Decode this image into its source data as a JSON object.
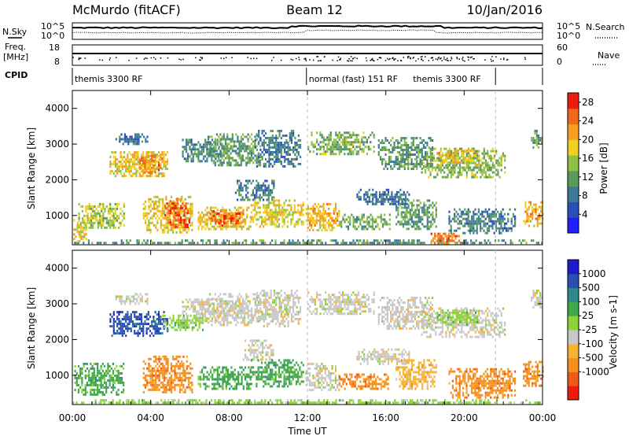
{
  "header": {
    "station": "McMurdo (fitACF)",
    "beam": "Beam 12",
    "date": "10/Jan/2016"
  },
  "top_panels": {
    "nsky_label": "N.Sky",
    "nsky_ticks": [
      "10^5",
      "10^0"
    ],
    "freq_label_1": "Freq.",
    "freq_label_2": "[MHz]",
    "freq_ticks": [
      "18",
      "8"
    ],
    "nsearch_label": "N.Search",
    "nsearch_ticks": [
      "10^5",
      "10^0"
    ],
    "nave_label": "Nave",
    "nave_ticks": [
      "60",
      "0"
    ],
    "cpid_label": "CPID",
    "cpid_segments": [
      {
        "label": "themis 3300 RF",
        "start_hour": 0,
        "end_hour": 11.95
      },
      {
        "label": "normal (fast) 151 RF",
        "start_hour": 11.95,
        "end_hour": 21.6
      },
      {
        "label": "themis 3300 RF",
        "start_hour": 21.6,
        "end_hour": 24
      }
    ]
  },
  "x_axis": {
    "title": "Time UT",
    "ticks": [
      "00:00",
      "04:00",
      "08:00",
      "12:00",
      "16:00",
      "20:00",
      "00:00"
    ]
  },
  "colors": {
    "power": [
      "#1f1fff",
      "#2b4fb8",
      "#3d7a9a",
      "#5a9a5a",
      "#8fc047",
      "#f0d020",
      "#f7a020",
      "#f06818",
      "#ee1c10"
    ],
    "velocity": [
      "#ee1c10",
      "#f05a18",
      "#f5901e",
      "#f7b432",
      "#c8c8c8",
      "#8ed23a",
      "#3fa84a",
      "#2f8a8a",
      "#2a4fb0",
      "#1c1ccc"
    ]
  },
  "chart_data": [
    {
      "type": "heatmap",
      "title": "Power",
      "ylabel": "Slant Range [km]",
      "xlabel": "Time UT",
      "xlim": [
        0,
        24
      ],
      "ylim": [
        180,
        4500
      ],
      "yticks": [
        1000,
        2000,
        3000,
        4000
      ],
      "colorbar": {
        "label": "Power [dB]",
        "ticks": [
          4,
          8,
          12,
          16,
          20,
          24,
          28
        ],
        "range": [
          0,
          30
        ]
      },
      "regions": [
        {
          "t0": 0.0,
          "t1": 24.0,
          "r0": 200,
          "r1": 330,
          "v": 11
        },
        {
          "t0": 0.05,
          "t1": 0.7,
          "r0": 300,
          "r1": 900,
          "v": 18
        },
        {
          "t0": 0.3,
          "t1": 2.6,
          "r0": 650,
          "r1": 1350,
          "v": 16
        },
        {
          "t0": 1.9,
          "t1": 4.9,
          "r0": 2100,
          "r1": 2800,
          "v": 19
        },
        {
          "t0": 2.2,
          "t1": 3.8,
          "r0": 3000,
          "r1": 3300,
          "v": 8
        },
        {
          "t0": 3.6,
          "t1": 6.1,
          "r0": 500,
          "r1": 1550,
          "v": 19
        },
        {
          "t0": 4.7,
          "t1": 6.0,
          "r0": 700,
          "r1": 1500,
          "v": 26
        },
        {
          "t0": 3.4,
          "t1": 4.6,
          "r0": 2200,
          "r1": 2700,
          "v": 23
        },
        {
          "t0": 5.6,
          "t1": 7.6,
          "r0": 2500,
          "r1": 3150,
          "v": 10
        },
        {
          "t0": 6.4,
          "t1": 9.1,
          "r0": 600,
          "r1": 1250,
          "v": 19
        },
        {
          "t0": 7.0,
          "t1": 8.7,
          "r0": 750,
          "r1": 1150,
          "v": 25
        },
        {
          "t0": 6.9,
          "t1": 9.6,
          "r0": 2400,
          "r1": 3300,
          "v": 12
        },
        {
          "t0": 8.3,
          "t1": 10.3,
          "r0": 1450,
          "r1": 2000,
          "v": 9
        },
        {
          "t0": 9.1,
          "t1": 11.8,
          "r0": 700,
          "r1": 1450,
          "v": 18
        },
        {
          "t0": 9.3,
          "t1": 11.6,
          "r0": 2400,
          "r1": 3400,
          "v": 9
        },
        {
          "t0": 11.9,
          "t1": 13.6,
          "r0": 600,
          "r1": 1350,
          "v": 20
        },
        {
          "t0": 12.0,
          "t1": 15.4,
          "r0": 2700,
          "r1": 3350,
          "v": 13
        },
        {
          "t0": 13.6,
          "t1": 16.2,
          "r0": 600,
          "r1": 1050,
          "v": 13
        },
        {
          "t0": 14.5,
          "t1": 17.2,
          "r0": 1300,
          "r1": 1750,
          "v": 8
        },
        {
          "t0": 15.6,
          "t1": 18.4,
          "r0": 2300,
          "r1": 3200,
          "v": 11
        },
        {
          "t0": 16.5,
          "t1": 18.6,
          "r0": 650,
          "r1": 1450,
          "v": 12
        },
        {
          "t0": 17.8,
          "t1": 22.1,
          "r0": 2100,
          "r1": 2900,
          "v": 14
        },
        {
          "t0": 18.6,
          "t1": 20.7,
          "r0": 2450,
          "r1": 2850,
          "v": 20
        },
        {
          "t0": 18.2,
          "t1": 19.8,
          "r0": 220,
          "r1": 520,
          "v": 24
        },
        {
          "t0": 19.2,
          "t1": 22.6,
          "r0": 500,
          "r1": 1200,
          "v": 9
        },
        {
          "t0": 23.0,
          "t1": 24.0,
          "r0": 700,
          "r1": 1400,
          "v": 20
        },
        {
          "t0": 23.4,
          "t1": 24.0,
          "r0": 2900,
          "r1": 3400,
          "v": 12
        }
      ]
    },
    {
      "type": "heatmap",
      "title": "Velocity",
      "ylabel": "Slant Range [km]",
      "xlabel": "Time UT",
      "xlim": [
        0,
        24
      ],
      "ylim": [
        180,
        4500
      ],
      "yticks": [
        1000,
        2000,
        3000,
        4000
      ],
      "colorbar": {
        "label": "Velocity [m s-1]",
        "ticks": [
          1000,
          500,
          100,
          25,
          -25,
          -100,
          -500,
          -1000
        ],
        "bins": [
          "<-1000",
          "-1000..-500",
          "-500..-100",
          "-100..-25",
          "-25..25",
          "25..100",
          "100..500",
          "500..1000",
          ">1000"
        ]
      },
      "regions": [
        {
          "t0": 0.0,
          "t1": 24.0,
          "r0": 200,
          "r1": 330,
          "c": 5
        },
        {
          "t0": 0.1,
          "t1": 2.6,
          "r0": 450,
          "r1": 1350,
          "c": 6
        },
        {
          "t0": 1.9,
          "t1": 4.9,
          "r0": 2100,
          "r1": 2800,
          "c": 8
        },
        {
          "t0": 2.2,
          "t1": 3.8,
          "r0": 3000,
          "r1": 3300,
          "c": 4
        },
        {
          "t0": 3.6,
          "t1": 6.1,
          "r0": 500,
          "r1": 1550,
          "c": 2
        },
        {
          "t0": 4.5,
          "t1": 6.7,
          "r0": 2300,
          "r1": 2700,
          "c": 5
        },
        {
          "t0": 5.6,
          "t1": 7.6,
          "r0": 2500,
          "r1": 3150,
          "c": 4
        },
        {
          "t0": 6.4,
          "t1": 9.1,
          "r0": 600,
          "r1": 1250,
          "c": 6
        },
        {
          "t0": 6.9,
          "t1": 9.6,
          "r0": 2400,
          "r1": 3300,
          "c": 4
        },
        {
          "t0": 8.7,
          "t1": 10.3,
          "r0": 1450,
          "r1": 2000,
          "c": 4
        },
        {
          "t0": 9.1,
          "t1": 11.8,
          "r0": 700,
          "r1": 1450,
          "c": 6
        },
        {
          "t0": 9.3,
          "t1": 11.6,
          "r0": 2400,
          "r1": 3400,
          "c": 4
        },
        {
          "t0": 11.9,
          "t1": 13.6,
          "r0": 600,
          "r1": 1350,
          "c": 4
        },
        {
          "t0": 12.0,
          "t1": 15.4,
          "r0": 2700,
          "r1": 3350,
          "c": 4
        },
        {
          "t0": 13.6,
          "t1": 16.2,
          "r0": 600,
          "r1": 1050,
          "c": 2
        },
        {
          "t0": 14.5,
          "t1": 17.2,
          "r0": 1300,
          "r1": 1750,
          "c": 4
        },
        {
          "t0": 15.6,
          "t1": 18.4,
          "r0": 2300,
          "r1": 3200,
          "c": 4
        },
        {
          "t0": 16.5,
          "t1": 18.6,
          "r0": 650,
          "r1": 1450,
          "c": 3
        },
        {
          "t0": 17.8,
          "t1": 22.1,
          "r0": 2100,
          "r1": 2900,
          "c": 4
        },
        {
          "t0": 18.6,
          "t1": 20.7,
          "r0": 2450,
          "r1": 2850,
          "c": 5
        },
        {
          "t0": 19.2,
          "t1": 22.6,
          "r0": 400,
          "r1": 1200,
          "c": 2
        },
        {
          "t0": 23.0,
          "t1": 24.0,
          "r0": 700,
          "r1": 1400,
          "c": 2
        },
        {
          "t0": 23.4,
          "t1": 24.0,
          "r0": 2900,
          "r1": 3400,
          "c": 4
        }
      ]
    }
  ]
}
